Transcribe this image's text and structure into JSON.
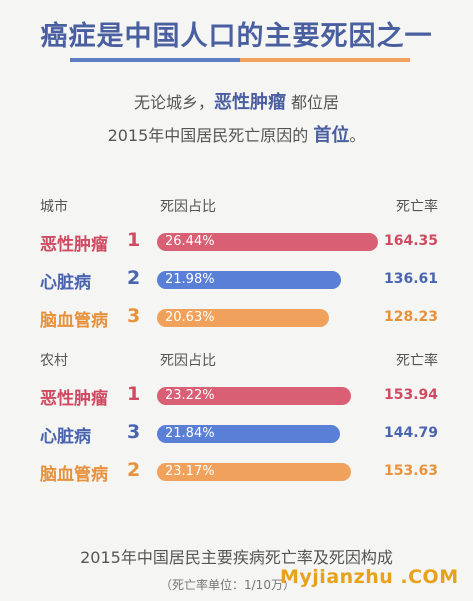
{
  "title": "癌症是中国人口的主要死因之一",
  "intro": {
    "line1_pre": "无论城乡，",
    "line1_hl": "恶性肿瘤",
    "line1_post": " 都位居",
    "line2_pre": "2015年中国居民死亡原因的 ",
    "line2_hl": "首位",
    "line2_post": "。"
  },
  "colors": {
    "red": "#d95f74",
    "blue": "#5a7fd6",
    "orange": "#f0a15c",
    "text_red": "#d04a62",
    "text_blue": "#4a64b0",
    "text_orange": "#e8913c"
  },
  "chart_data": {
    "type": "bar",
    "groups": [
      {
        "name": "城市",
        "col_share": "死因占比",
        "col_rate": "死亡率",
        "rows": [
          {
            "label": "恶性肿瘤",
            "rank": "1",
            "share": 26.44,
            "share_label": "26.44%",
            "rate": "164.35",
            "color": "red"
          },
          {
            "label": "心脏病",
            "rank": "2",
            "share": 21.98,
            "share_label": "21.98%",
            "rate": "136.61",
            "color": "blue"
          },
          {
            "label": "脑血管病",
            "rank": "3",
            "share": 20.63,
            "share_label": "20.63%",
            "rate": "128.23",
            "color": "orange"
          }
        ]
      },
      {
        "name": "农村",
        "col_share": "死因占比",
        "col_rate": "死亡率",
        "rows": [
          {
            "label": "恶性肿瘤",
            "rank": "1",
            "share": 23.22,
            "share_label": "23.22%",
            "rate": "153.94",
            "color": "red"
          },
          {
            "label": "心脏病",
            "rank": "3",
            "share": 21.84,
            "share_label": "21.84%",
            "rate": "144.79",
            "color": "blue"
          },
          {
            "label": "脑血管病",
            "rank": "2",
            "share": 23.17,
            "share_label": "23.17%",
            "rate": "153.63",
            "color": "orange"
          }
        ]
      }
    ]
  },
  "footer": "2015年中国居民主要疾病死亡率及死因构成",
  "unit": "（死亡率单位：1/10万）",
  "watermark": "Myjianzhu .COM"
}
